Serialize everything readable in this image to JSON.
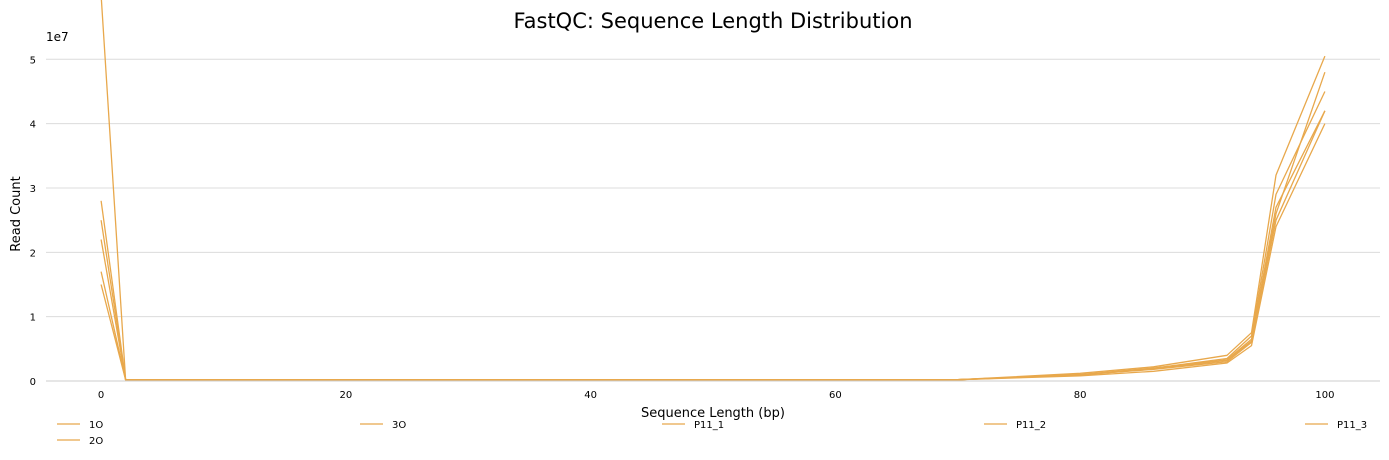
{
  "chart_data": {
    "type": "line",
    "title": "FastQC: Sequence Length Distribution",
    "xlabel": "Sequence Length (bp)",
    "ylabel": "Read Count",
    "y_offset_label": "1e7",
    "xlim": [
      -4.5,
      104.5
    ],
    "ylim": [
      0,
      5.3
    ],
    "x_ticks": [
      0,
      20,
      40,
      60,
      80,
      100
    ],
    "y_ticks": [
      0,
      1,
      2,
      3,
      4,
      5
    ],
    "grid": "horizontal",
    "legend_position": "bottom",
    "color": "#e8a84c",
    "x": [
      0,
      2,
      70,
      80,
      86,
      92,
      94,
      96,
      100
    ],
    "series": [
      {
        "name": "1O",
        "values": [
          2.8,
          0.02,
          0.02,
          0.1,
          0.18,
          0.3,
          0.6,
          2.6,
          4.8
        ]
      },
      {
        "name": "2O",
        "values": [
          1.7,
          0.02,
          0.02,
          0.1,
          0.2,
          0.35,
          0.7,
          2.9,
          4.5
        ]
      },
      {
        "name": "3O",
        "values": [
          6.0,
          0.02,
          0.02,
          0.12,
          0.22,
          0.4,
          0.75,
          3.2,
          5.05
        ]
      },
      {
        "name": "P11_1",
        "values": [
          2.2,
          0.02,
          0.02,
          0.08,
          0.15,
          0.28,
          0.55,
          2.4,
          4.0
        ]
      },
      {
        "name": "P11_2",
        "values": [
          1.5,
          0.02,
          0.02,
          0.1,
          0.2,
          0.33,
          0.65,
          2.7,
          4.2
        ]
      },
      {
        "name": "P11_3",
        "values": [
          2.5,
          0.02,
          0.02,
          0.09,
          0.19,
          0.32,
          0.62,
          2.5,
          4.2
        ]
      }
    ]
  }
}
